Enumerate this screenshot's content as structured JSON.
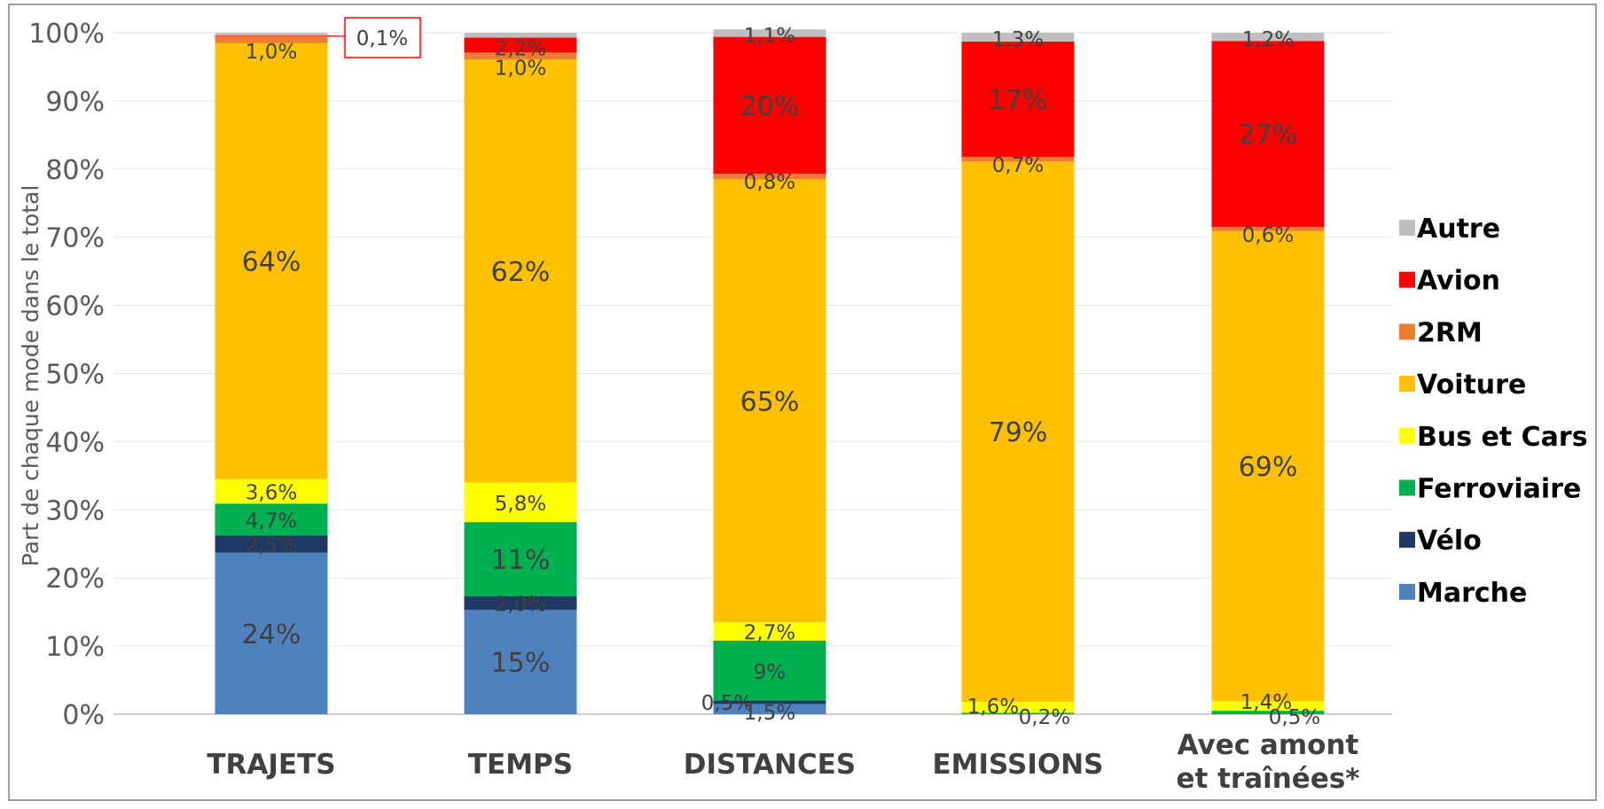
{
  "chart_data": {
    "type": "bar",
    "stacked": true,
    "categories": [
      "TRAJETS",
      "TEMPS",
      "DISTANCES",
      "EMISSIONS",
      "Avec amont et traînées*"
    ],
    "category_lines": [
      [
        "TRAJETS"
      ],
      [
        "TEMPS"
      ],
      [
        "DISTANCES"
      ],
      [
        "EMISSIONS"
      ],
      [
        "Avec amont",
        "et traînées*"
      ]
    ],
    "ylabel": "Part de chaque mode dans le total",
    "ylim": [
      0,
      100
    ],
    "yticks": [
      "0%",
      "10%",
      "20%",
      "30%",
      "40%",
      "50%",
      "60%",
      "70%",
      "80%",
      "90%",
      "100%"
    ],
    "grid": true,
    "legend_position": "right",
    "series": [
      {
        "name": "Marche",
        "color": "#4F81BD",
        "values": [
          23.7,
          15.3,
          1.5,
          0,
          0
        ],
        "labels": [
          "24%",
          "15%",
          "1,5%",
          "",
          ""
        ]
      },
      {
        "name": "Vélo",
        "color": "#1F3864",
        "values": [
          2.5,
          2.0,
          0.5,
          0,
          0
        ],
        "labels": [
          "2,5%",
          "2,0%",
          "0,5%",
          "",
          ""
        ]
      },
      {
        "name": "Ferroviaire",
        "color": "#00B050",
        "values": [
          4.7,
          10.9,
          8.8,
          0.2,
          0.5
        ],
        "labels": [
          "4,7%",
          "11%",
          "9%",
          "0,2%",
          "0,5%"
        ]
      },
      {
        "name": "Bus et Cars",
        "color": "#FFFF00",
        "values": [
          3.6,
          5.8,
          2.7,
          1.6,
          1.4
        ],
        "labels": [
          "3,6%",
          "5,8%",
          "2,7%",
          "1,6%",
          "1,4%"
        ]
      },
      {
        "name": "Voiture",
        "color": "#FFC000",
        "values": [
          64.0,
          62.1,
          65.0,
          79.3,
          69.0
        ],
        "labels": [
          "64%",
          "62%",
          "65%",
          "79%",
          "69%"
        ]
      },
      {
        "name": "2RM",
        "color": "#ED7D31",
        "values": [
          1.0,
          1.0,
          0.8,
          0.7,
          0.6
        ],
        "labels": [
          "1,0%",
          "1,0%",
          "0,8%",
          "0,7%",
          "0,6%"
        ]
      },
      {
        "name": "Avion",
        "color": "#FF0000",
        "values": [
          0.1,
          2.2,
          20.1,
          16.9,
          27.3
        ],
        "labels": [
          "0,1%",
          "2,2%",
          "20%",
          "17%",
          "27%"
        ]
      },
      {
        "name": "Autre",
        "color": "#BFBFBF",
        "values": [
          0.4,
          0.7,
          1.1,
          1.3,
          1.2
        ],
        "labels": [
          "",
          "",
          "1,1%",
          "1,3%",
          "1,2%"
        ]
      }
    ],
    "legend_order": [
      "Autre",
      "Avion",
      "2RM",
      "Voiture",
      "Bus et Cars",
      "Ferroviaire",
      "Vélo",
      "Marche"
    ],
    "callout": {
      "text": "0,1%",
      "series": "Avion",
      "category": "TRAJETS"
    }
  }
}
